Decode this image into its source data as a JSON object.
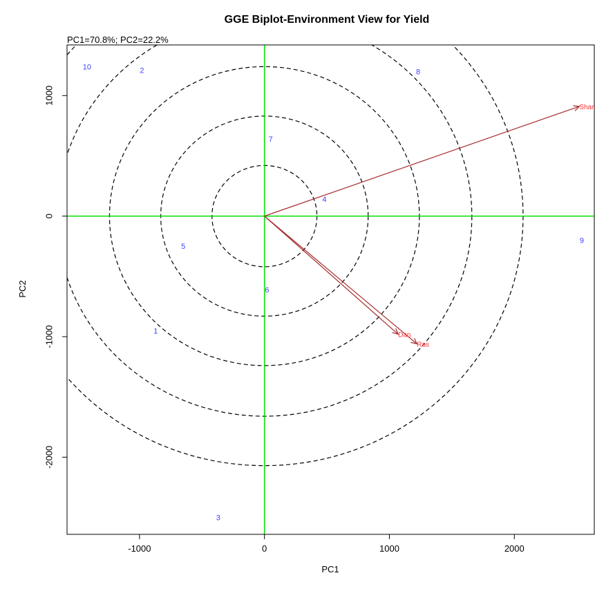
{
  "chart_data": {
    "type": "scatter",
    "title": "GGE Biplot-Environment View for Yield",
    "subtitle": "PC1=70.8%; PC2=22.2%",
    "xlabel": "PC1",
    "ylabel": "PC2",
    "xlim": [
      -1580,
      2640
    ],
    "ylim": [
      -2640,
      1420
    ],
    "x_ticks": [
      -1000,
      0,
      1000,
      2000
    ],
    "y_ticks": [
      -2000,
      -1000,
      0,
      1000
    ],
    "x_tick_labels": [
      "-1000",
      "0",
      "1000",
      "2000"
    ],
    "y_tick_labels": [
      "-2000",
      "-1000",
      "0",
      "1000"
    ],
    "circle_radii": [
      420,
      830,
      1240,
      1660,
      2070
    ],
    "colors": {
      "genotype": "#4040ff",
      "environment": "#ff3030",
      "vector": "#a52a2a",
      "axis_lines": "#00e000",
      "circles": "#000000"
    },
    "genotypes": [
      {
        "label": "1",
        "x": -870,
        "y": -950
      },
      {
        "label": "2",
        "x": -980,
        "y": 1210
      },
      {
        "label": "3",
        "x": -370,
        "y": -2500
      },
      {
        "label": "4",
        "x": 480,
        "y": 140
      },
      {
        "label": "5",
        "x": -650,
        "y": -250
      },
      {
        "label": "6",
        "x": 20,
        "y": -610
      },
      {
        "label": "7",
        "x": 50,
        "y": 640
      },
      {
        "label": "8",
        "x": 1230,
        "y": 1200
      },
      {
        "label": "9",
        "x": 2540,
        "y": -200
      },
      {
        "label": "10",
        "x": -1420,
        "y": 1240
      }
    ],
    "environments": [
      {
        "label": "Shan",
        "x": 2520,
        "y": 910
      },
      {
        "label": "Dan",
        "x": 1070,
        "y": -980
      },
      {
        "label": "Ras",
        "x": 1220,
        "y": -1060
      }
    ]
  }
}
